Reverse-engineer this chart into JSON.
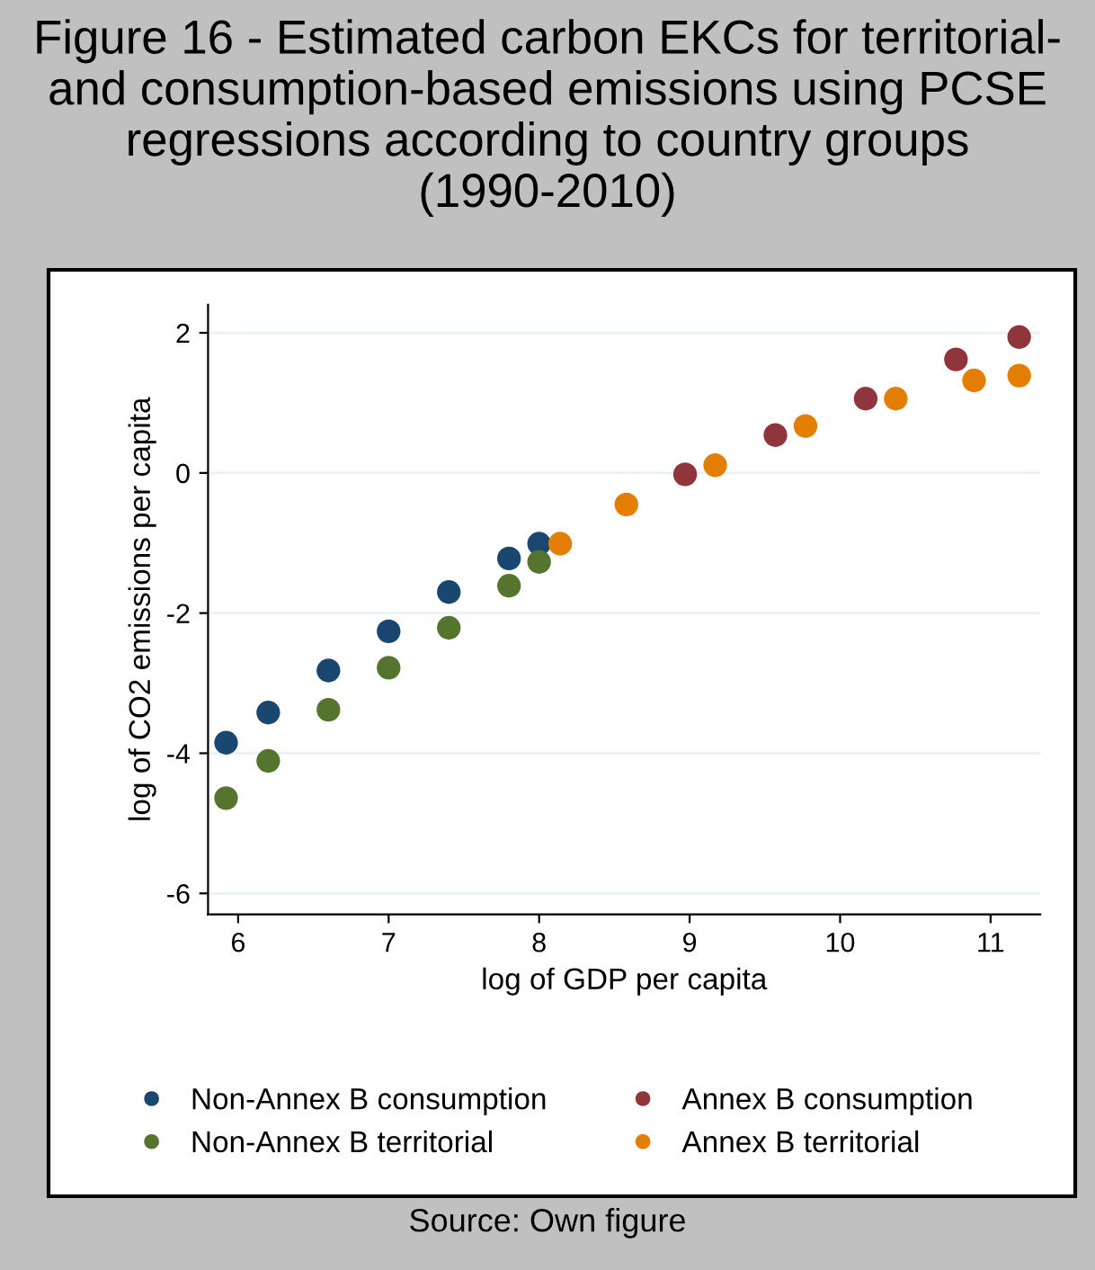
{
  "chart_data": {
    "type": "scatter",
    "title": "Figure 16 - Estimated carbon EKCs for territorial- and consumption-based emissions using PCSE regressions according to country groups (1990-2010)",
    "xlabel": "log of GDP per capita",
    "ylabel": "log of CO2 emissions per capita",
    "annotations": [
      "Source: Own figure"
    ],
    "xlim": [
      5.8,
      11.33
    ],
    "xticks": [
      6,
      7,
      8,
      9,
      10,
      11
    ],
    "ylim": [
      -6.3,
      2.4
    ],
    "yticks": [
      -6,
      -4,
      -2,
      0,
      2
    ],
    "grid": "y",
    "legend": "bottom",
    "marker": "circle",
    "series": [
      {
        "name": "Non-Annex B consumption",
        "color": "#1a476f",
        "x": [
          5.92,
          6.2,
          6.6,
          7.0,
          7.4,
          7.8,
          8.0
        ],
        "values": [
          -3.85,
          -3.42,
          -2.82,
          -2.26,
          -1.7,
          -1.22,
          -1.01
        ]
      },
      {
        "name": "Annex B consumption",
        "color": "#90353b",
        "x": [
          8.97,
          9.57,
          10.17,
          10.77,
          11.19
        ],
        "values": [
          -0.02,
          0.54,
          1.06,
          1.62,
          1.94
        ]
      },
      {
        "name": "Non-Annex B territorial",
        "color": "#55752f",
        "x": [
          5.92,
          6.2,
          6.6,
          7.0,
          7.4,
          7.8,
          8.0
        ],
        "values": [
          -4.64,
          -4.11,
          -3.38,
          -2.78,
          -2.21,
          -1.61,
          -1.27
        ]
      },
      {
        "name": "Annex B territorial",
        "color": "#e37e00",
        "x": [
          8.14,
          8.58,
          9.17,
          9.77,
          10.37,
          10.89,
          11.19
        ],
        "values": [
          -1.01,
          -0.45,
          0.11,
          0.67,
          1.06,
          1.32,
          1.39
        ]
      }
    ]
  }
}
